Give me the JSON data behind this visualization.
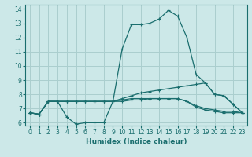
{
  "xlabel": "Humidex (Indice chaleur)",
  "xlim": [
    -0.5,
    23.5
  ],
  "ylim": [
    5.8,
    14.3
  ],
  "yticks": [
    6,
    7,
    8,
    9,
    10,
    11,
    12,
    13,
    14
  ],
  "xticks": [
    0,
    1,
    2,
    3,
    4,
    5,
    6,
    7,
    8,
    9,
    10,
    11,
    12,
    13,
    14,
    15,
    16,
    17,
    18,
    19,
    20,
    21,
    22,
    23
  ],
  "bg_color": "#cce8e8",
  "grid_color": "#aacece",
  "line_color": "#1a6e6e",
  "series": [
    [
      6.7,
      6.6,
      7.5,
      7.5,
      6.4,
      5.9,
      6.0,
      6.0,
      6.0,
      7.5,
      11.2,
      12.9,
      12.9,
      13.0,
      13.3,
      13.9,
      13.5,
      12.0,
      9.4,
      8.8,
      8.0,
      7.9,
      7.3,
      6.7
    ],
    [
      6.7,
      6.6,
      7.5,
      7.5,
      7.5,
      7.5,
      7.5,
      7.5,
      7.5,
      7.5,
      7.7,
      7.9,
      8.1,
      8.2,
      8.3,
      8.4,
      8.5,
      8.6,
      8.7,
      8.8,
      8.0,
      7.9,
      7.3,
      6.7
    ],
    [
      6.7,
      6.6,
      7.5,
      7.5,
      7.5,
      7.5,
      7.5,
      7.5,
      7.5,
      7.5,
      7.6,
      7.7,
      7.7,
      7.7,
      7.7,
      7.7,
      7.7,
      7.5,
      7.2,
      7.0,
      6.9,
      6.8,
      6.8,
      6.7
    ],
    [
      6.7,
      6.6,
      7.5,
      7.5,
      7.5,
      7.5,
      7.5,
      7.5,
      7.5,
      7.5,
      7.5,
      7.6,
      7.6,
      7.7,
      7.7,
      7.7,
      7.7,
      7.5,
      7.1,
      6.9,
      6.8,
      6.7,
      6.7,
      6.7
    ]
  ]
}
